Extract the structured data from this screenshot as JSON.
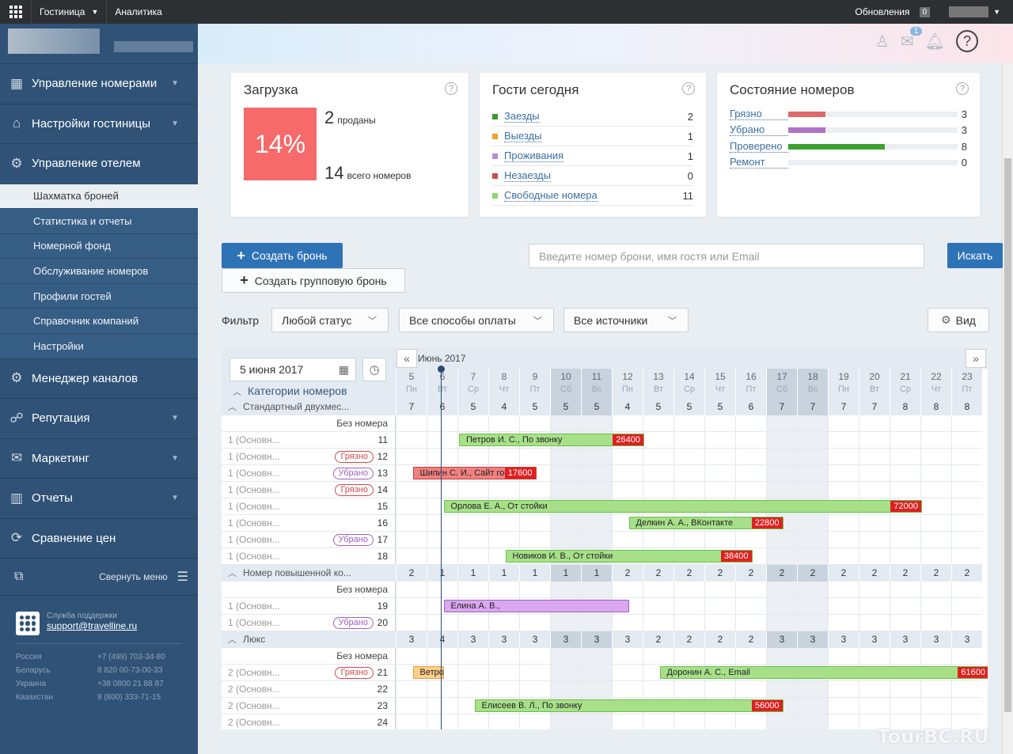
{
  "topbar": {
    "nav": [
      "Гостиница",
      "Аналитика"
    ],
    "updates_label": "Обновления",
    "updates_count": "0"
  },
  "sidebar": {
    "main_items": [
      {
        "label": "Управление номерами",
        "icon": "calendar-icon"
      },
      {
        "label": "Настройки гостиницы",
        "icon": "home-icon"
      },
      {
        "label": "Управление отелем",
        "icon": "gear-icon"
      }
    ],
    "sub_items": [
      "Шахматка броней",
      "Статистика и отчеты",
      "Номерной фонд",
      "Обслуживание номеров",
      "Профили гостей",
      "Справочник компаний",
      "Настройки"
    ],
    "main_items_2": [
      {
        "label": "Менеджер каналов",
        "icon": "gears-icon"
      },
      {
        "label": "Репутация",
        "icon": "handshake-icon"
      },
      {
        "label": "Маркетинг",
        "icon": "envelope-icon"
      },
      {
        "label": "Отчеты",
        "icon": "bar-chart-icon"
      },
      {
        "label": "Сравнение цен",
        "icon": "refresh-icon"
      }
    ],
    "collapse_label": "Свернуть меню",
    "support": {
      "label": "Служба поддержки",
      "email": "support@travelline.ru",
      "phones": [
        {
          "country": "Россия",
          "phone": "+7 (499) 703-34-80"
        },
        {
          "country": "Беларусь",
          "phone": "8 820 00-73-00-33"
        },
        {
          "country": "Украина",
          "phone": "+38 0800 21 88 87"
        },
        {
          "country": "Казахстан",
          "phone": "8 (800) 333-71-15"
        }
      ]
    }
  },
  "header": {
    "messages_count": "1",
    "help": "?"
  },
  "load_card": {
    "title": "Загрузка",
    "percent": "14%",
    "sold": "2",
    "sold_label": "проданы",
    "total": "14",
    "total_label": "всего номеров"
  },
  "guests_card": {
    "title": "Гости сегодня",
    "rows": [
      {
        "label": "Заезды",
        "value": "2",
        "color": "#3c9a2e"
      },
      {
        "label": "Выезды",
        "value": "1",
        "color": "#f0a030"
      },
      {
        "label": "Проживания",
        "value": "1",
        "color": "#b88ad8"
      },
      {
        "label": "Незаезды",
        "value": "0",
        "color": "#d54848"
      },
      {
        "label": "Свободные номера",
        "value": "11",
        "color": "#8fd86a"
      }
    ]
  },
  "rooms_card": {
    "title": "Состояние номеров",
    "rows": [
      {
        "label": "Грязно",
        "value": "3",
        "color": "#e06a6a",
        "fraction": 0.22
      },
      {
        "label": "Убрано",
        "value": "3",
        "color": "#b072c8",
        "fraction": 0.22
      },
      {
        "label": "Проверено",
        "value": "8",
        "color": "#3ca02e",
        "fraction": 0.57
      },
      {
        "label": "Ремонт",
        "value": "0",
        "color": "#cccccc",
        "fraction": 0
      }
    ]
  },
  "actions": {
    "create_booking": "Создать бронь",
    "create_group_booking": "Создать групповую бронь",
    "search_placeholder": "Введите номер брони, имя гостя или Email",
    "search_button": "Искать",
    "filter_label": "Фильтр",
    "filters": [
      "Любой статус",
      "Все способы оплаты",
      "Все источники"
    ],
    "view_button": "Вид"
  },
  "grid": {
    "date": "5 июня 2017",
    "categories_label": "Категории номеров",
    "month": "Июнь 2017",
    "days": [
      {
        "d": "5",
        "w": "Пн",
        "we": false
      },
      {
        "d": "6",
        "w": "Вт",
        "we": false
      },
      {
        "d": "7",
        "w": "Ср",
        "we": false
      },
      {
        "d": "8",
        "w": "Чт",
        "we": false
      },
      {
        "d": "9",
        "w": "Пт",
        "we": false
      },
      {
        "d": "10",
        "w": "Сб",
        "we": true
      },
      {
        "d": "11",
        "w": "Вс",
        "we": true
      },
      {
        "d": "12",
        "w": "Пн",
        "we": false
      },
      {
        "d": "13",
        "w": "Вт",
        "we": false
      },
      {
        "d": "14",
        "w": "Ср",
        "we": false
      },
      {
        "d": "15",
        "w": "Чт",
        "we": false
      },
      {
        "d": "16",
        "w": "Пт",
        "we": false
      },
      {
        "d": "17",
        "w": "Сб",
        "we": true
      },
      {
        "d": "18",
        "w": "Вс",
        "we": true
      },
      {
        "d": "19",
        "w": "Пн",
        "we": false
      },
      {
        "d": "20",
        "w": "Вт",
        "we": false
      },
      {
        "d": "21",
        "w": "Ср",
        "we": false
      },
      {
        "d": "22",
        "w": "Чт",
        "we": false
      },
      {
        "d": "23",
        "w": "Пт",
        "we": false
      }
    ],
    "no_number_label": "Без номера",
    "rows": [
      {
        "type": "cat",
        "label": "Стандартный двухмес...",
        "counts": [
          "7",
          "6",
          "5",
          "4",
          "5",
          "5",
          "5",
          "4",
          "5",
          "5",
          "5",
          "6",
          "7",
          "7",
          "7",
          "7",
          "8",
          "8",
          "8"
        ]
      },
      {
        "type": "nonum"
      },
      {
        "type": "room",
        "rt": "1 (Основн...",
        "num": "11"
      },
      {
        "type": "room",
        "rt": "1 (Основн...",
        "num": "12",
        "status": "Грязно",
        "status_color": "#d54848"
      },
      {
        "type": "room",
        "rt": "1 (Основн...",
        "num": "13",
        "status": "Убрано",
        "status_color": "#a060c0"
      },
      {
        "type": "room",
        "rt": "1 (Основн...",
        "num": "14",
        "status": "Грязно",
        "status_color": "#d54848"
      },
      {
        "type": "room",
        "rt": "1 (Основн...",
        "num": "15"
      },
      {
        "type": "room",
        "rt": "1 (Основн...",
        "num": "16"
      },
      {
        "type": "room",
        "rt": "1 (Основн...",
        "num": "17",
        "status": "Убрано",
        "status_color": "#a060c0"
      },
      {
        "type": "room",
        "rt": "1 (Основн...",
        "num": "18"
      },
      {
        "type": "cat",
        "label": "Номер повышенной ко...",
        "counts": [
          "2",
          "1",
          "1",
          "1",
          "1",
          "1",
          "1",
          "2",
          "2",
          "2",
          "2",
          "2",
          "2",
          "2",
          "2",
          "2",
          "2",
          "2",
          "2"
        ]
      },
      {
        "type": "nonum"
      },
      {
        "type": "room",
        "rt": "1 (Основн...",
        "num": "19"
      },
      {
        "type": "room",
        "rt": "1 (Основн...",
        "num": "20",
        "status": "Убрано",
        "status_color": "#a060c0"
      },
      {
        "type": "cat",
        "label": "Люкс",
        "counts": [
          "3",
          "4",
          "3",
          "3",
          "3",
          "3",
          "3",
          "3",
          "2",
          "2",
          "2",
          "2",
          "3",
          "3",
          "3",
          "3",
          "3",
          "3",
          "3"
        ]
      },
      {
        "type": "nonum"
      },
      {
        "type": "room",
        "rt": "2 (Основн...",
        "num": "21",
        "status": "Грязно",
        "status_color": "#d54848"
      },
      {
        "type": "room",
        "rt": "2 (Основн...",
        "num": "22"
      },
      {
        "type": "room",
        "rt": "2 (Основн...",
        "num": "23"
      },
      {
        "type": "room",
        "rt": "2 (Основн...",
        "num": "24"
      }
    ],
    "bookings": [
      {
        "row": 2,
        "start": 2.0,
        "len": 6.0,
        "label": "Петров И. С., По звонку",
        "price": "26400",
        "bg": "#a8e08a",
        "border": "#6abf48"
      },
      {
        "row": 4,
        "start": 0.5,
        "len": 4.0,
        "label": "Шипин С. И., Сайт гостиницы",
        "price": "17600",
        "bg": "#f08080",
        "border": "#c83c3c"
      },
      {
        "row": 6,
        "start": 1.5,
        "len": 15.5,
        "label": "Орлова Е. А., От стойки",
        "price": "72000",
        "bg": "#a8e08a",
        "border": "#6abf48"
      },
      {
        "row": 7,
        "start": 7.5,
        "len": 5.0,
        "label": "Делкин А. А., ВКонтакте",
        "price": "22800",
        "bg": "#a8e08a",
        "border": "#6abf48"
      },
      {
        "row": 9,
        "start": 3.5,
        "len": 8.0,
        "label": "Новиков И. В., От стойки",
        "price": "38400",
        "bg": "#a8e08a",
        "border": "#6abf48"
      },
      {
        "row": 12,
        "start": 1.5,
        "len": 6.0,
        "label": "Елина А. В.,",
        "price": "",
        "bg": "#d9a8ef",
        "border": "#a060c0"
      },
      {
        "row": 16,
        "start": 0.5,
        "len": 1.0,
        "label": "Ветров",
        "price": "",
        "bg": "#ffcf8a",
        "border": "#e0a040"
      },
      {
        "row": 16,
        "start": 8.5,
        "len": 11.0,
        "label": "Доронин А. С., Email",
        "price": "61600",
        "bg": "#a8e08a",
        "border": "#6abf48"
      },
      {
        "row": 18,
        "start": 2.5,
        "len": 10.0,
        "label": "Елисеев В. Л., По звонку",
        "price": "56000",
        "bg": "#a8e08a",
        "border": "#6abf48"
      }
    ]
  },
  "watermark": "TourBC.RU"
}
